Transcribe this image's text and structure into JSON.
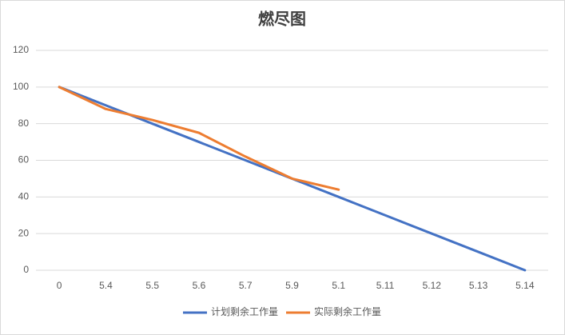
{
  "chart_data": {
    "type": "line",
    "title": "燃尽图",
    "categories": [
      "0",
      "5.4",
      "5.5",
      "5.6",
      "5.7",
      "5.9",
      "5.1",
      "5.11",
      "5.12",
      "5.13",
      "5.14"
    ],
    "series": [
      {
        "name": "计划剩余工作量",
        "color": "#4472c4",
        "values": [
          100,
          90,
          80,
          70,
          60,
          50,
          40,
          30,
          20,
          10,
          0
        ]
      },
      {
        "name": "实际剩余工作量",
        "color": "#ed7d31",
        "values": [
          100,
          88,
          82,
          75,
          62,
          50,
          44,
          null,
          null,
          null,
          null
        ]
      }
    ],
    "ylim": [
      0,
      120
    ],
    "yticks": [
      0,
      20,
      40,
      60,
      80,
      100,
      120
    ],
    "grid": true,
    "legend": "bottom"
  }
}
